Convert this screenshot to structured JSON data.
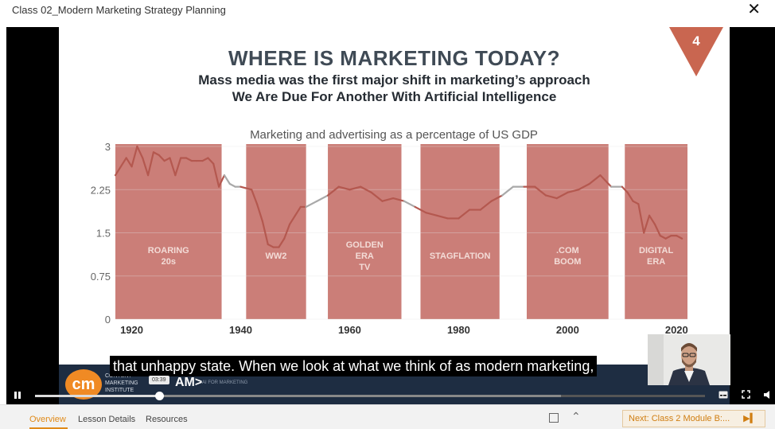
{
  "window": {
    "title": "Class 02_Modern Marketing Strategy Planning",
    "close_icon": "close-icon"
  },
  "slide": {
    "number": "4",
    "title": "WHERE IS MARKETING TODAY?",
    "subtitle_1": "Mass media was the first major shift in marketing’s approach",
    "subtitle_2": "We Are Due For Another With Artificial Intelligence"
  },
  "chart_data": {
    "type": "line",
    "title": "Marketing and advertising as a percentage of US GDP",
    "xlabel": "",
    "ylabel": "",
    "xlim": [
      1917,
      2022
    ],
    "ylim": [
      0,
      3
    ],
    "x_ticks": [
      "1920",
      "1940",
      "1960",
      "1980",
      "2000",
      "2020"
    ],
    "x_tick_values": [
      1920,
      1940,
      1960,
      1980,
      2000,
      2020
    ],
    "y_ticks": [
      "0",
      "0.75",
      "1.5",
      "2.25",
      "3"
    ],
    "y_tick_values": [
      0,
      0.75,
      1.5,
      2.25,
      3
    ],
    "highlight_color": "#c0625a",
    "line_color_in_era": "#b4584f",
    "line_color_outside": "#a9a9a9",
    "eras": [
      {
        "label": [
          "ROARING",
          "20s"
        ],
        "start": 1917,
        "end": 1936.5
      },
      {
        "label": [
          "WW2"
        ],
        "start": 1941,
        "end": 1952
      },
      {
        "label": [
          "GOLDEN",
          "ERA",
          "TV"
        ],
        "start": 1956,
        "end": 1969.5
      },
      {
        "label": [
          "STAGFLATION"
        ],
        "start": 1973,
        "end": 1987.5
      },
      {
        "label": [
          ".COM",
          "BOOM"
        ],
        "start": 1992.5,
        "end": 2007.5
      },
      {
        "label": [
          "DIGITAL",
          "ERA"
        ],
        "start": 2010.5,
        "end": 2026
      }
    ],
    "series": [
      {
        "x": [
          1917,
          1919,
          1920,
          1921,
          1922,
          1923,
          1924,
          1925,
          1926,
          1927,
          1928,
          1929,
          1930,
          1931,
          1932,
          1933,
          1934,
          1935,
          1936,
          1937,
          1938,
          1939,
          1940,
          1942,
          1943,
          1944,
          1945,
          1946,
          1947,
          1948,
          1949,
          1950,
          1951,
          1952,
          1954,
          1956,
          1958,
          1960,
          1962,
          1964,
          1966,
          1968,
          1970,
          1972,
          1974,
          1976,
          1978,
          1980,
          1982,
          1984,
          1986,
          1988,
          1990,
          1992,
          1994,
          1996,
          1998,
          2000,
          2002,
          2004,
          2006,
          2008,
          2010,
          2011,
          2012,
          2013,
          2014,
          2015,
          2016,
          2017,
          2018,
          2019,
          2020,
          2021
        ],
        "y": [
          2.5,
          2.8,
          2.65,
          3.0,
          2.8,
          2.5,
          2.9,
          2.85,
          2.75,
          2.8,
          2.5,
          2.8,
          2.8,
          2.75,
          2.75,
          2.75,
          2.8,
          2.7,
          2.3,
          2.5,
          2.35,
          2.3,
          2.3,
          2.25,
          2.0,
          1.7,
          1.3,
          1.25,
          1.25,
          1.4,
          1.65,
          1.8,
          1.95,
          1.95,
          2.05,
          2.15,
          2.3,
          2.25,
          2.3,
          2.2,
          2.05,
          2.1,
          2.05,
          1.95,
          1.85,
          1.8,
          1.75,
          1.75,
          1.9,
          1.9,
          2.05,
          2.15,
          2.3,
          2.3,
          2.3,
          2.15,
          2.1,
          2.2,
          2.25,
          2.35,
          2.5,
          2.3,
          2.3,
          2.2,
          2.05,
          2.0,
          1.5,
          1.8,
          1.65,
          1.45,
          1.4,
          1.45,
          1.45,
          1.4
        ]
      }
    ]
  },
  "branding": {
    "logo_letters": "cm",
    "org_name": "CONTENT MARKETING INSTITUTE",
    "ai_label": "AM>",
    "ai_sub": "AI FOR MARKETING"
  },
  "player": {
    "caption": "that unhappy state. When we look at what we think of as modern marketing,",
    "time_tooltip": "03:39",
    "progress": 0.185,
    "buffered": 0.785,
    "play_pause_icon": "pause-icon",
    "captions_icon": "captions-icon",
    "fullscreen_icon": "fullscreen-icon",
    "volume_icon": "volume-icon"
  },
  "bottombar": {
    "tabs": [
      {
        "label": "Overview",
        "active": true
      },
      {
        "label": "Lesson Details",
        "active": false
      },
      {
        "label": "Resources",
        "active": false
      }
    ],
    "next_label": "Next: Class 2 Module B:...",
    "next_icon": "skip-next-icon",
    "checkbox_icon": "square-icon",
    "collapse_icon": "chevron-up-icon"
  }
}
